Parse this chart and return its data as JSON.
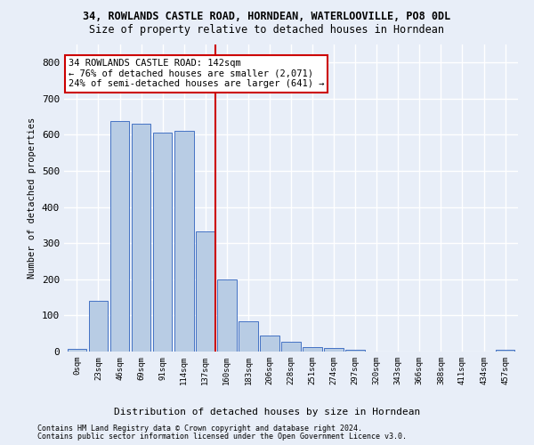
{
  "title": "34, ROWLANDS CASTLE ROAD, HORNDEAN, WATERLOOVILLE, PO8 0DL",
  "subtitle": "Size of property relative to detached houses in Horndean",
  "xlabel_bottom": "Distribution of detached houses by size in Horndean",
  "ylabel": "Number of detached properties",
  "bar_labels": [
    "0sqm",
    "23sqm",
    "46sqm",
    "69sqm",
    "91sqm",
    "114sqm",
    "137sqm",
    "160sqm",
    "183sqm",
    "206sqm",
    "228sqm",
    "251sqm",
    "274sqm",
    "297sqm",
    "320sqm",
    "343sqm",
    "366sqm",
    "388sqm",
    "411sqm",
    "434sqm",
    "457sqm"
  ],
  "bar_values": [
    7,
    140,
    638,
    630,
    607,
    610,
    332,
    200,
    83,
    44,
    27,
    12,
    11,
    5,
    0,
    0,
    0,
    0,
    0,
    0,
    5
  ],
  "bar_color": "#b8cce4",
  "bar_edge_color": "#4472c4",
  "ylim": [
    0,
    850
  ],
  "yticks": [
    0,
    100,
    200,
    300,
    400,
    500,
    600,
    700,
    800
  ],
  "vline_x_idx": 6,
  "vline_color": "#cc0000",
  "annotation_text": "34 ROWLANDS CASTLE ROAD: 142sqm\n← 76% of detached houses are smaller (2,071)\n24% of semi-detached houses are larger (641) →",
  "annotation_box_color": "#ffffff",
  "annotation_box_edge": "#cc0000",
  "footer_line1": "Contains HM Land Registry data © Crown copyright and database right 2024.",
  "footer_line2": "Contains public sector information licensed under the Open Government Licence v3.0.",
  "bg_color": "#e8eef8",
  "grid_color": "#ffffff",
  "title_fontsize": 8.5,
  "subtitle_fontsize": 8.5,
  "annotation_fontsize": 7.5
}
